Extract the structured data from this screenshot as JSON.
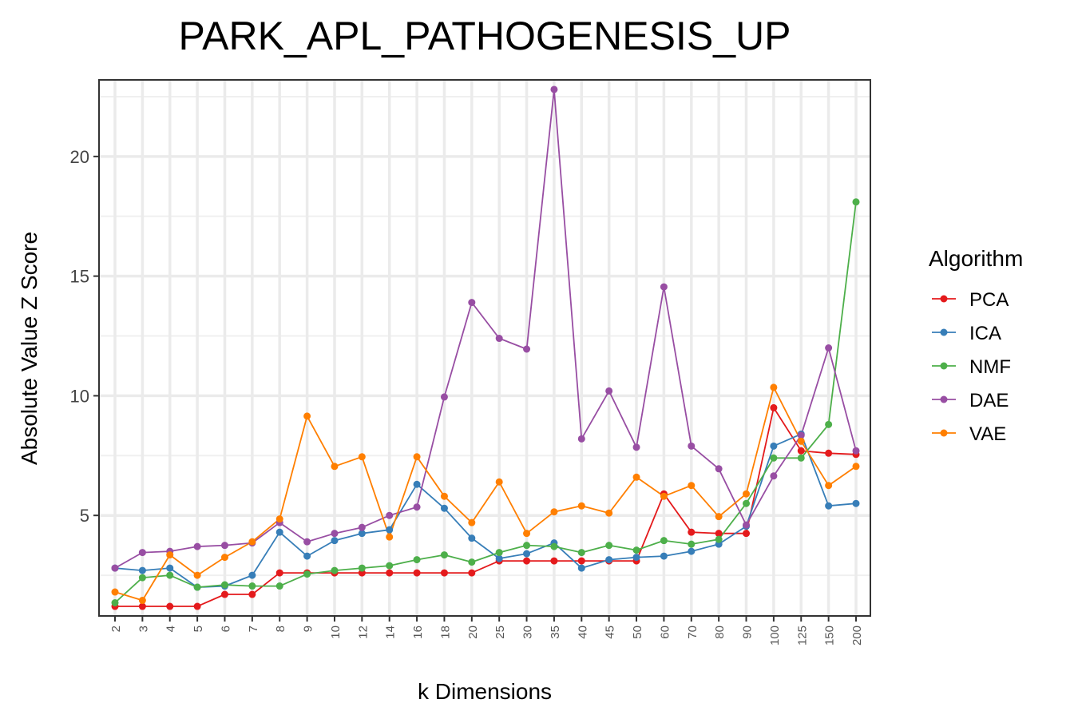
{
  "chart_data": {
    "type": "line",
    "title": "PARK_APL_PATHOGENESIS_UP",
    "xlabel": "k Dimensions",
    "ylabel": "Absolute Value Z Score",
    "categories": [
      "2",
      "3",
      "4",
      "5",
      "6",
      "7",
      "8",
      "9",
      "10",
      "12",
      "14",
      "16",
      "18",
      "20",
      "25",
      "30",
      "35",
      "40",
      "45",
      "50",
      "60",
      "70",
      "80",
      "90",
      "100",
      "125",
      "150",
      "200"
    ],
    "ylim": [
      0.8,
      23.2
    ],
    "yticks": [
      5,
      10,
      15,
      20
    ],
    "grid": true,
    "legend": {
      "title": "Algorithm",
      "placement": "right"
    },
    "series": [
      {
        "name": "PCA",
        "color": "#e41a1c",
        "values": [
          1.2,
          1.2,
          1.2,
          1.2,
          1.7,
          1.7,
          2.6,
          2.6,
          2.6,
          2.6,
          2.6,
          2.6,
          2.6,
          2.6,
          3.1,
          3.1,
          3.1,
          3.1,
          3.1,
          3.1,
          5.9,
          4.3,
          4.25,
          4.25,
          9.5,
          7.7,
          7.6,
          7.55
        ]
      },
      {
        "name": "ICA",
        "color": "#377eb8",
        "values": [
          2.8,
          2.7,
          2.8,
          2.0,
          2.05,
          2.5,
          4.3,
          3.3,
          3.95,
          4.25,
          4.4,
          6.3,
          5.3,
          4.05,
          3.2,
          3.4,
          3.85,
          2.8,
          3.15,
          3.25,
          3.3,
          3.5,
          3.8,
          4.55,
          7.9,
          8.4,
          5.4,
          5.5
        ]
      },
      {
        "name": "NMF",
        "color": "#4daf4a",
        "values": [
          1.35,
          2.4,
          2.5,
          2.0,
          2.1,
          2.05,
          2.05,
          2.55,
          2.7,
          2.8,
          2.9,
          3.15,
          3.35,
          3.05,
          3.45,
          3.75,
          3.7,
          3.45,
          3.75,
          3.55,
          3.95,
          3.8,
          4.0,
          5.5,
          7.4,
          7.4,
          8.8,
          18.1
        ]
      },
      {
        "name": "DAE",
        "color": "#984ea3",
        "values": [
          2.8,
          3.45,
          3.5,
          3.7,
          3.75,
          3.85,
          4.7,
          3.9,
          4.25,
          4.5,
          5.0,
          5.35,
          9.95,
          13.9,
          12.4,
          11.95,
          22.8,
          8.2,
          10.2,
          7.85,
          14.55,
          7.9,
          6.95,
          4.6,
          6.65,
          8.35,
          12.0,
          7.7
        ]
      },
      {
        "name": "VAE",
        "color": "#ff7f00",
        "values": [
          1.8,
          1.45,
          3.35,
          2.5,
          3.25,
          3.9,
          4.85,
          9.15,
          7.05,
          7.45,
          4.1,
          7.45,
          5.8,
          4.7,
          6.4,
          4.25,
          5.15,
          5.4,
          5.1,
          6.6,
          5.8,
          6.25,
          4.95,
          5.9,
          10.35,
          8.1,
          6.25,
          7.05
        ]
      }
    ]
  }
}
